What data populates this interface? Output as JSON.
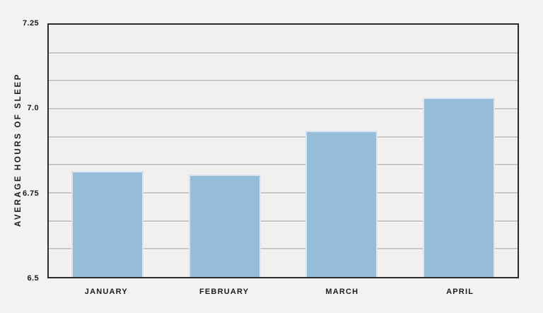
{
  "chart_data": {
    "type": "bar",
    "title": "",
    "xlabel": "",
    "ylabel": "AVERAGE HOURS OF SLEEP",
    "categories": [
      "JANUARY",
      "FEBRUARY",
      "MARCH",
      "APRIL"
    ],
    "values": [
      6.81,
      6.8,
      6.93,
      7.03
    ],
    "ylim": [
      6.5,
      7.25
    ],
    "yticks": [
      {
        "value": 7.25,
        "label": "7.25"
      },
      {
        "value": 7.0,
        "label": "7.0"
      },
      {
        "value": 6.75,
        "label": "6.75"
      },
      {
        "value": 6.5,
        "label": "6.5"
      }
    ],
    "minor_divisions": 9,
    "grid": true,
    "legend": false,
    "bar_color": "#95bcd8",
    "bar_edge_color": "#d9e6f1",
    "axis_color": "#2b2b2b",
    "gridline_color": "#c6c5c4",
    "background": "#f3f2f2",
    "plot_background": "#f1f0ef"
  }
}
